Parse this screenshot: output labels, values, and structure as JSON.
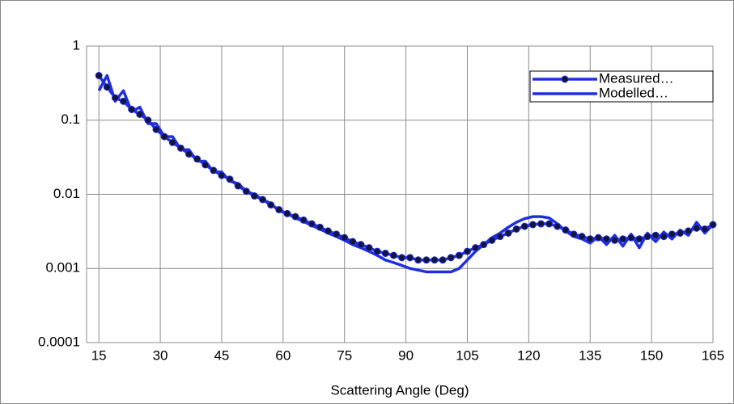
{
  "chart_data": {
    "type": "line",
    "x_label": "Scattering Angle (Deg)",
    "x": [
      15,
      17,
      19,
      21,
      23,
      25,
      27,
      29,
      31,
      33,
      35,
      37,
      39,
      41,
      43,
      45,
      47,
      49,
      51,
      53,
      55,
      57,
      59,
      61,
      63,
      65,
      67,
      69,
      71,
      73,
      75,
      77,
      79,
      81,
      83,
      85,
      87,
      89,
      91,
      93,
      95,
      97,
      99,
      101,
      103,
      105,
      107,
      109,
      111,
      113,
      115,
      117,
      119,
      121,
      123,
      125,
      127,
      129,
      131,
      133,
      135,
      137,
      139,
      141,
      143,
      145,
      147,
      149,
      151,
      153,
      155,
      157,
      159,
      161,
      163,
      165
    ],
    "series": [
      {
        "name": "Measured…",
        "color": "#1f2fe0",
        "marker": "circle",
        "marker_color": "#14143a",
        "values": [
          0.4,
          0.28,
          0.2,
          0.18,
          0.14,
          0.12,
          0.1,
          0.075,
          0.06,
          0.05,
          0.042,
          0.035,
          0.03,
          0.025,
          0.021,
          0.018,
          0.016,
          0.013,
          0.011,
          0.0095,
          0.0085,
          0.0072,
          0.0062,
          0.0055,
          0.005,
          0.0045,
          0.004,
          0.0036,
          0.0032,
          0.0029,
          0.0026,
          0.0023,
          0.0021,
          0.0019,
          0.0017,
          0.0016,
          0.0015,
          0.0014,
          0.0014,
          0.0013,
          0.0013,
          0.0013,
          0.0013,
          0.0014,
          0.0015,
          0.0017,
          0.0019,
          0.0021,
          0.0024,
          0.0027,
          0.003,
          0.0034,
          0.0037,
          0.0039,
          0.004,
          0.004,
          0.0037,
          0.0033,
          0.0029,
          0.0027,
          0.0025,
          0.0026,
          0.0025,
          0.0024,
          0.0025,
          0.0026,
          0.0025,
          0.0027,
          0.0028,
          0.0027,
          0.0029,
          0.003,
          0.0032,
          0.0035,
          0.0034,
          0.0039
        ]
      },
      {
        "name": "Modelled…",
        "color": "#1f2fe0",
        "marker": "none",
        "values": [
          0.25,
          0.4,
          0.18,
          0.25,
          0.13,
          0.15,
          0.09,
          0.09,
          0.06,
          0.06,
          0.04,
          0.04,
          0.028,
          0.028,
          0.02,
          0.02,
          0.015,
          0.014,
          0.011,
          0.01,
          0.0085,
          0.0075,
          0.006,
          0.0055,
          0.0048,
          0.0043,
          0.0038,
          0.0034,
          0.003,
          0.0027,
          0.0024,
          0.0021,
          0.0019,
          0.0017,
          0.0015,
          0.0013,
          0.0012,
          0.0011,
          0.001,
          0.00095,
          0.0009,
          0.0009,
          0.0009,
          0.0009,
          0.001,
          0.0013,
          0.0017,
          0.0021,
          0.0026,
          0.003,
          0.0036,
          0.0042,
          0.0047,
          0.005,
          0.005,
          0.0048,
          0.004,
          0.0032,
          0.0027,
          0.0025,
          0.0022,
          0.0027,
          0.0021,
          0.0028,
          0.002,
          0.0029,
          0.0019,
          0.003,
          0.0023,
          0.0031,
          0.0025,
          0.0033,
          0.0028,
          0.0042,
          0.003,
          0.0039
        ]
      }
    ],
    "xlim": [
      12,
      165
    ],
    "xticks": [
      15,
      30,
      45,
      60,
      75,
      90,
      105,
      120,
      135,
      150,
      165
    ],
    "ylim": [
      0.0001,
      1
    ],
    "yticks": [
      1,
      0.1,
      0.01,
      0.001,
      0.0001
    ],
    "log_y": true,
    "grid": true,
    "legend": "upper right"
  }
}
